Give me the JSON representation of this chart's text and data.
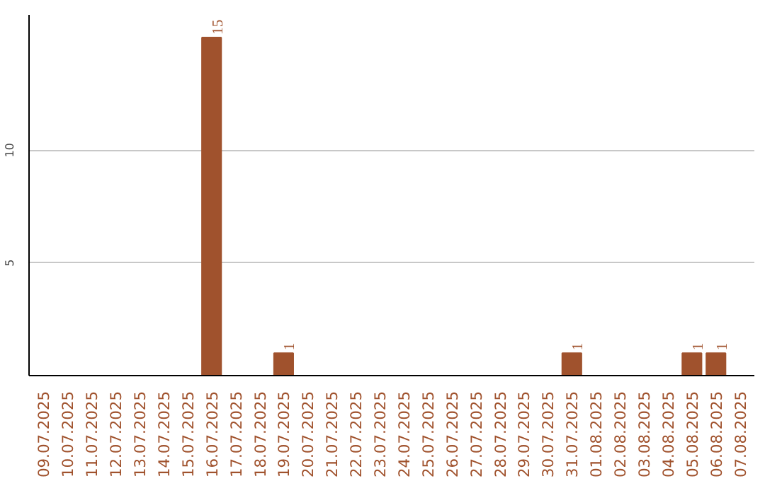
{
  "chart_data": {
    "type": "bar",
    "categories": [
      "09.07.2025",
      "10.07.2025",
      "11.07.2025",
      "12.07.2025",
      "13.07.2025",
      "14.07.2025",
      "15.07.2025",
      "16.07.2025",
      "17.07.2025",
      "18.07.2025",
      "19.07.2025",
      "20.07.2025",
      "21.07.2025",
      "22.07.2025",
      "23.07.2025",
      "24.07.2025",
      "25.07.2025",
      "26.07.2025",
      "27.07.2025",
      "28.07.2025",
      "29.07.2025",
      "30.07.2025",
      "31.07.2025",
      "01.08.2025",
      "02.08.2025",
      "03.08.2025",
      "04.08.2025",
      "05.08.2025",
      "06.08.2025",
      "07.08.2025"
    ],
    "values": [
      0,
      0,
      0,
      0,
      0,
      0,
      0,
      15,
      0,
      0,
      1,
      0,
      0,
      0,
      0,
      0,
      0,
      0,
      0,
      0,
      0,
      0,
      1,
      0,
      0,
      0,
      0,
      1,
      1,
      0
    ],
    "value_labels": [
      null,
      null,
      null,
      null,
      null,
      null,
      null,
      "15",
      null,
      null,
      "1",
      null,
      null,
      null,
      null,
      null,
      null,
      null,
      null,
      null,
      null,
      null,
      "1",
      null,
      null,
      null,
      null,
      "1",
      "1",
      null
    ],
    "color": "#a0522d",
    "ylim": [
      0,
      16
    ],
    "yticks": [
      5,
      10
    ],
    "grid": "y"
  }
}
